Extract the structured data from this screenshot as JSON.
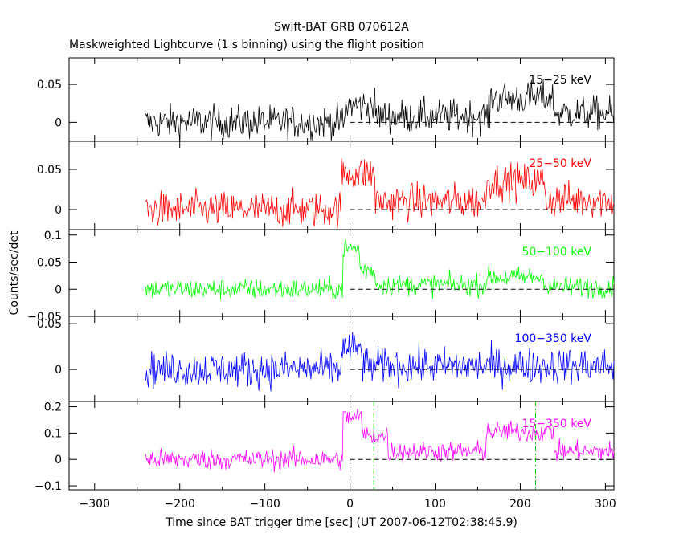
{
  "chart_data": {
    "type": "line",
    "title": "Swift-BAT GRB 070612A",
    "subtitle": "Maskweighted Lightcurve (1 s binning) using the flight position",
    "xlabel": "Time since BAT trigger time [sec] (UT 2007-06-12T02:38:45.9)",
    "ylabel": "Counts/sec/det",
    "xlim": [
      -330,
      310
    ],
    "x_ticks": [
      -300,
      -200,
      -100,
      0,
      100,
      200,
      300
    ],
    "x_tick_labels": [
      "−300",
      "−200",
      "−100",
      "0",
      "100",
      "200",
      "300"
    ],
    "data_start": -240,
    "data_end": 310,
    "trigger_time": 0,
    "t90_markers": [
      28,
      218
    ],
    "panels": [
      {
        "name": "15-25",
        "label": "15−25 keV",
        "color": "#000000",
        "ylim": [
          -0.025,
          0.085
        ],
        "y_ticks": [
          0,
          0.05
        ],
        "y_tick_labels": [
          "0",
          "0.05"
        ],
        "noise": 0.016,
        "peaks": [
          {
            "start": -5,
            "end": 30,
            "level": 0.022
          },
          {
            "start": 30,
            "end": 165,
            "level": 0.008
          },
          {
            "start": 165,
            "end": 240,
            "level": 0.032
          },
          {
            "start": 240,
            "end": 310,
            "level": 0.012
          }
        ]
      },
      {
        "name": "25-50",
        "label": "25−50 keV",
        "color": "#ff0000",
        "ylim": [
          -0.025,
          0.085
        ],
        "y_ticks": [
          0,
          0.05
        ],
        "y_tick_labels": [
          "0",
          "0.05"
        ],
        "noise": 0.016,
        "peaks": [
          {
            "start": -10,
            "end": 30,
            "level": 0.045
          },
          {
            "start": 30,
            "end": 160,
            "level": 0.01
          },
          {
            "start": 160,
            "end": 230,
            "level": 0.035
          },
          {
            "start": 230,
            "end": 310,
            "level": 0.012
          }
        ]
      },
      {
        "name": "50-100",
        "label": "50−100 keV",
        "color": "#00ff00",
        "ylim": [
          -0.05,
          0.11
        ],
        "y_ticks": [
          -0.05,
          0,
          0.05,
          0.1
        ],
        "y_tick_labels": [
          "−0.05",
          "0",
          "0.05",
          "0.1"
        ],
        "noise": 0.014,
        "peaks": [
          {
            "start": -8,
            "end": 12,
            "level": 0.075
          },
          {
            "start": 12,
            "end": 30,
            "level": 0.035
          },
          {
            "start": 30,
            "end": 160,
            "level": 0.008
          },
          {
            "start": 160,
            "end": 230,
            "level": 0.022
          },
          {
            "start": 230,
            "end": 310,
            "level": 0.004
          }
        ]
      },
      {
        "name": "100-350",
        "label": "100−350 keV",
        "color": "#0000ff",
        "ylim": [
          -0.035,
          0.058
        ],
        "y_ticks": [
          0,
          0.05
        ],
        "y_tick_labels": [
          "0",
          "0.05"
        ],
        "noise": 0.014,
        "peaks": [
          {
            "start": -10,
            "end": 15,
            "level": 0.022
          },
          {
            "start": 15,
            "end": 310,
            "level": 0.004
          }
        ]
      },
      {
        "name": "15-350",
        "label": "15−350 keV",
        "color": "#ff00ff",
        "ylim": [
          -0.115,
          0.22
        ],
        "y_ticks": [
          -0.1,
          0,
          0.1,
          0.2
        ],
        "y_tick_labels": [
          "−0.1",
          "0",
          "0.1",
          "0.2"
        ],
        "noise": 0.028,
        "peaks": [
          {
            "start": -8,
            "end": 15,
            "level": 0.16
          },
          {
            "start": 15,
            "end": 45,
            "level": 0.09
          },
          {
            "start": 45,
            "end": 160,
            "level": 0.03
          },
          {
            "start": 160,
            "end": 240,
            "level": 0.105
          },
          {
            "start": 240,
            "end": 310,
            "level": 0.03
          }
        ]
      }
    ]
  }
}
